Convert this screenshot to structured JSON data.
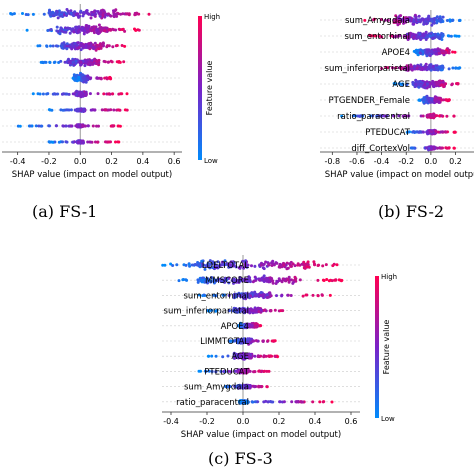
{
  "colors": {
    "high": "#ff0052",
    "low": "#008bfb",
    "mid": "#7a22c8",
    "zero_line": "#999999",
    "dashed": "#cccccc"
  },
  "chart_data": [
    {
      "type": "scatter",
      "caption": "(a) FS-1",
      "xlabel": "SHAP value (impact on model output)",
      "xticks": [
        "-0.4",
        "-0.2",
        "0.0",
        "0.2",
        "0.4",
        "0.6"
      ],
      "xlim": [
        -0.5,
        0.65
      ],
      "colorbar": {
        "title": "Feature value",
        "high": "High",
        "low": "Low"
      },
      "features": [
        {
          "name": "",
          "spread": [
            -0.45,
            0.55
          ],
          "core": [
            -0.2,
            0.25
          ],
          "width": 1.0
        },
        {
          "name": "",
          "spread": [
            -0.38,
            0.4
          ],
          "core": [
            -0.15,
            0.18
          ],
          "width": 0.9
        },
        {
          "name": "",
          "spread": [
            -0.3,
            0.3
          ],
          "core": [
            -0.12,
            0.15
          ],
          "width": 0.8
        },
        {
          "name": "",
          "spread": [
            -0.25,
            0.28
          ],
          "core": [
            -0.08,
            0.12
          ],
          "width": 0.7
        },
        {
          "name": "",
          "spread": [
            -0.05,
            0.2
          ],
          "core": [
            -0.04,
            0.05
          ],
          "width": 0.85
        },
        {
          "name": "",
          "spread": [
            -0.3,
            0.3
          ],
          "core": [
            -0.03,
            0.04
          ],
          "width": 0.45
        },
        {
          "name": "",
          "spread": [
            -0.2,
            0.3
          ],
          "core": [
            -0.02,
            0.03
          ],
          "width": 0.35
        },
        {
          "name": "",
          "spread": [
            -0.4,
            0.3
          ],
          "core": [
            -0.02,
            0.02
          ],
          "width": 0.3
        },
        {
          "name": "",
          "spread": [
            -0.2,
            0.25
          ],
          "core": [
            -0.02,
            0.02
          ],
          "width": 0.3
        }
      ]
    },
    {
      "type": "scatter",
      "caption": "(b) FS-2",
      "xlabel": "SHAP value (impact on model output)",
      "xticks": [
        "-0.8",
        "-0.6",
        "-0.4",
        "-0.2",
        "0.0",
        "0.2"
      ],
      "xlim": [
        -0.9,
        0.35
      ],
      "colorbar": null,
      "features": [
        {
          "name": "sum_Amygdala",
          "spread": [
            -0.55,
            0.25
          ],
          "core": [
            -0.3,
            0.1
          ],
          "width": 1.0
        },
        {
          "name": "sum_entorhinal",
          "spread": [
            -0.5,
            0.25
          ],
          "core": [
            -0.2,
            0.1
          ],
          "width": 0.8
        },
        {
          "name": "APOE4",
          "spread": [
            -0.15,
            0.2
          ],
          "core": [
            -0.12,
            0.15
          ],
          "width": 0.8
        },
        {
          "name": "sum_inferiorparietal",
          "spread": [
            -0.45,
            0.25
          ],
          "core": [
            -0.2,
            0.1
          ],
          "width": 0.7
        },
        {
          "name": "AGE",
          "spread": [
            -0.3,
            0.25
          ],
          "core": [
            -0.15,
            0.12
          ],
          "width": 0.8
        },
        {
          "name": "PTGENDER_Female",
          "spread": [
            -0.1,
            0.15
          ],
          "core": [
            -0.06,
            0.08
          ],
          "width": 0.7
        },
        {
          "name": "ratio_paracentral",
          "spread": [
            -0.75,
            0.2
          ],
          "core": [
            -0.03,
            0.03
          ],
          "width": 0.4
        },
        {
          "name": "PTEDUCAT",
          "spread": [
            -0.2,
            0.2
          ],
          "core": [
            -0.03,
            0.04
          ],
          "width": 0.4
        },
        {
          "name": "diff_CortexVol",
          "spread": [
            -0.2,
            0.2
          ],
          "core": [
            -0.02,
            0.03
          ],
          "width": 0.35
        }
      ]
    },
    {
      "type": "scatter",
      "caption": "(c) FS-3",
      "xlabel": "SHAP value (impact on model output)",
      "xticks": [
        "-0.4",
        "-0.2",
        "0.0",
        "0.2",
        "0.4",
        "0.6"
      ],
      "xlim": [
        -0.45,
        0.65
      ],
      "colorbar": {
        "title": "Feature value",
        "high": "High",
        "low": "Low"
      },
      "features": [
        {
          "name": "LDELTOTAL",
          "spread": [
            -0.45,
            0.55
          ],
          "core": [
            -0.3,
            0.4
          ],
          "width": 1.0
        },
        {
          "name": "MMSCORE",
          "spread": [
            -0.4,
            0.55
          ],
          "core": [
            -0.25,
            0.3
          ],
          "width": 0.9
        },
        {
          "name": "sum_entorhinal",
          "spread": [
            -0.25,
            0.5
          ],
          "core": [
            -0.05,
            0.15
          ],
          "width": 0.6
        },
        {
          "name": "sum_inferiorparietal",
          "spread": [
            -0.2,
            0.3
          ],
          "core": [
            -0.05,
            0.1
          ],
          "width": 0.6
        },
        {
          "name": "APOE4",
          "spread": [
            -0.03,
            0.1
          ],
          "core": [
            -0.02,
            0.08
          ],
          "width": 0.55
        },
        {
          "name": "LIMMTOTAL",
          "spread": [
            -0.1,
            0.2
          ],
          "core": [
            -0.03,
            0.05
          ],
          "width": 0.55
        },
        {
          "name": "AGE",
          "spread": [
            -0.2,
            0.2
          ],
          "core": [
            -0.05,
            0.05
          ],
          "width": 0.6
        },
        {
          "name": "PTEDUCAT",
          "spread": [
            -0.25,
            0.15
          ],
          "core": [
            -0.03,
            0.03
          ],
          "width": 0.4
        },
        {
          "name": "sum_Amygdala",
          "spread": [
            -0.1,
            0.15
          ],
          "core": [
            -0.03,
            0.04
          ],
          "width": 0.4
        },
        {
          "name": "ratio_paracentral",
          "spread": [
            -0.05,
            0.5
          ],
          "core": [
            -0.02,
            0.03
          ],
          "width": 0.35
        }
      ]
    }
  ]
}
